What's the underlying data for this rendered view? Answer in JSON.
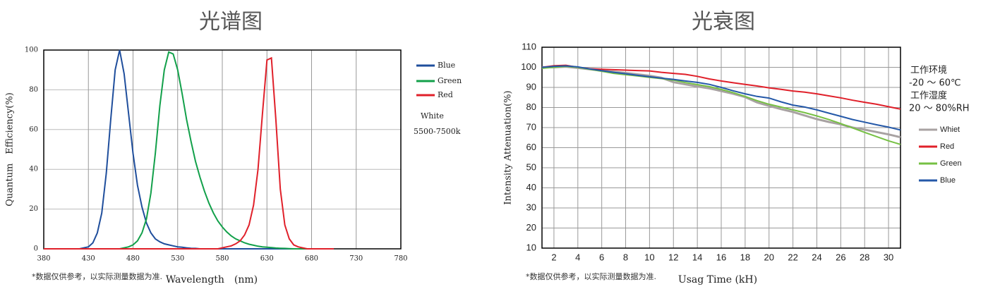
{
  "chart_data": [
    {
      "type": "line",
      "title": "光谱图",
      "x_label": "Wavelength　(nm)",
      "y_label": "Quantum　Efficiency(%)",
      "footnote": "*数据仅供参考，以实际测量数据为准.",
      "annotations": [
        "White",
        "5500-7500k"
      ],
      "x": [
        380,
        385,
        390,
        395,
        400,
        405,
        410,
        415,
        420,
        425,
        430,
        435,
        440,
        445,
        450,
        455,
        460,
        465,
        470,
        475,
        480,
        485,
        490,
        495,
        500,
        505,
        510,
        515,
        520,
        525,
        530,
        535,
        540,
        545,
        550,
        555,
        560,
        565,
        570,
        575,
        580,
        585,
        590,
        595,
        600,
        605,
        610,
        615,
        620,
        625,
        630,
        635,
        640,
        645,
        650,
        655,
        660,
        665,
        670,
        675,
        680,
        685,
        690,
        695,
        700,
        705
      ],
      "series": [
        {
          "name": "Blue",
          "color": "#1f4e9c",
          "values": [
            0,
            0,
            0,
            0,
            0,
            0,
            0,
            0,
            0,
            0.5,
            1,
            3,
            8,
            18,
            38,
            65,
            90,
            100,
            88,
            68,
            48,
            32,
            21,
            13,
            8,
            5,
            3.5,
            2.5,
            2,
            1.5,
            1,
            0.8,
            0.5,
            0.3,
            0.2,
            0,
            0,
            0,
            0,
            0,
            0,
            0,
            0,
            0,
            0,
            0,
            0,
            0,
            0,
            0,
            0,
            0,
            0,
            0,
            0,
            0,
            0,
            0,
            0,
            0,
            0,
            0,
            0,
            0,
            0,
            0
          ]
        },
        {
          "name": "Green",
          "color": "#12a04a",
          "values": [
            0,
            0,
            0,
            0,
            0,
            0,
            0,
            0,
            0,
            0,
            0,
            0,
            0,
            0,
            0,
            0,
            0,
            0,
            0.5,
            1,
            2,
            4,
            8,
            15,
            28,
            48,
            72,
            90,
            99,
            98,
            90,
            78,
            65,
            54,
            44,
            36,
            29,
            23,
            18,
            14,
            11,
            8.5,
            6.5,
            5,
            4,
            3,
            2.3,
            1.8,
            1.3,
            1,
            0.8,
            0.6,
            0.4,
            0.3,
            0.2,
            0.1,
            0,
            0,
            0,
            0,
            0,
            0,
            0,
            0,
            0,
            0
          ]
        },
        {
          "name": "Red",
          "color": "#e0202a",
          "values": [
            0,
            0,
            0,
            0,
            0,
            0,
            0,
            0,
            0,
            0,
            0,
            0,
            0,
            0,
            0,
            0,
            0,
            0,
            0,
            0,
            0,
            0,
            0,
            0,
            0,
            0,
            0,
            0,
            0,
            0,
            0,
            0,
            0,
            0,
            0,
            0,
            0,
            0,
            0,
            0,
            0.5,
            1,
            1.5,
            2.5,
            4,
            7,
            12,
            22,
            40,
            68,
            95,
            96,
            65,
            30,
            12,
            5,
            2,
            1,
            0.5,
            0,
            0,
            0,
            0,
            0,
            0,
            0
          ]
        }
      ],
      "xlim": [
        380,
        780
      ],
      "ylim": [
        0,
        100
      ],
      "xticks": [
        380,
        430,
        480,
        530,
        580,
        630,
        680,
        730,
        780
      ],
      "yticks": [
        0,
        20,
        40,
        60,
        80,
        100
      ],
      "grid": true
    },
    {
      "type": "line",
      "title": "光衰图",
      "x_label": "Usag Time (kH)",
      "y_label": "Intensity Attenuation(%)",
      "footnote": "*数据仅供参考，以实际测量数据为准.",
      "annotations": [
        "工作环境",
        "-20 ～ 60℃",
        "工作湿度",
        "20 ～ 80%RH"
      ],
      "x": [
        1,
        2,
        3,
        4,
        5,
        6,
        7,
        8,
        9,
        10,
        11,
        12,
        13,
        14,
        15,
        16,
        17,
        18,
        19,
        20,
        21,
        22,
        23,
        24,
        25,
        26,
        27,
        28,
        29,
        30,
        31
      ],
      "series": [
        {
          "name": "Whiet",
          "color": "#a8a2a2",
          "values": [
            100,
            100,
            100.3,
            99.7,
            99,
            98.3,
            97.8,
            97.2,
            96.5,
            95.8,
            94.8,
            92.6,
            91.5,
            90.5,
            89.5,
            88.2,
            86.8,
            85.2,
            82.5,
            80.8,
            79.2,
            77.8,
            76,
            74.2,
            72.8,
            71.6,
            70,
            69,
            67.8,
            66.6,
            65.2
          ]
        },
        {
          "name": "Red",
          "color": "#e0202a",
          "values": [
            100,
            100.8,
            101,
            100,
            99.3,
            99,
            98.8,
            98.6,
            98.4,
            98.2,
            97.5,
            97,
            96.5,
            95.5,
            94.2,
            93.2,
            92.3,
            91.5,
            90.7,
            89.8,
            89,
            88.2,
            87.6,
            86.8,
            85.8,
            84.8,
            83.6,
            82.6,
            81.6,
            80.4,
            79.2
          ]
        },
        {
          "name": "Green",
          "color": "#76c043",
          "values": [
            99.5,
            100,
            100.5,
            100,
            99,
            98,
            97,
            96.3,
            95.7,
            95,
            94.4,
            93.6,
            92.4,
            91.4,
            90.4,
            89,
            87.4,
            85.5,
            83.4,
            81.6,
            80.2,
            78.8,
            77.4,
            75.8,
            74,
            72,
            69.8,
            67.6,
            65.5,
            63.4,
            61.6
          ]
        },
        {
          "name": "Blue",
          "color": "#2458a8",
          "values": [
            100,
            100.5,
            100.7,
            100.2,
            99.2,
            98.3,
            97.5,
            96.8,
            96,
            95.3,
            94.6,
            94,
            93.2,
            92.5,
            91.5,
            90,
            88.3,
            86.8,
            85.5,
            84.7,
            82.8,
            81.2,
            80.2,
            78.8,
            77.2,
            75.6,
            74,
            72.7,
            71.4,
            70.2,
            68.8
          ]
        }
      ],
      "xlim": [
        1,
        31
      ],
      "ylim": [
        10,
        110
      ],
      "xticks": [
        2,
        4,
        6,
        8,
        10,
        12,
        14,
        16,
        18,
        20,
        22,
        24,
        26,
        28,
        30
      ],
      "yticks": [
        10,
        20,
        30,
        40,
        50,
        60,
        70,
        80,
        90,
        100,
        110
      ],
      "grid": true
    }
  ]
}
